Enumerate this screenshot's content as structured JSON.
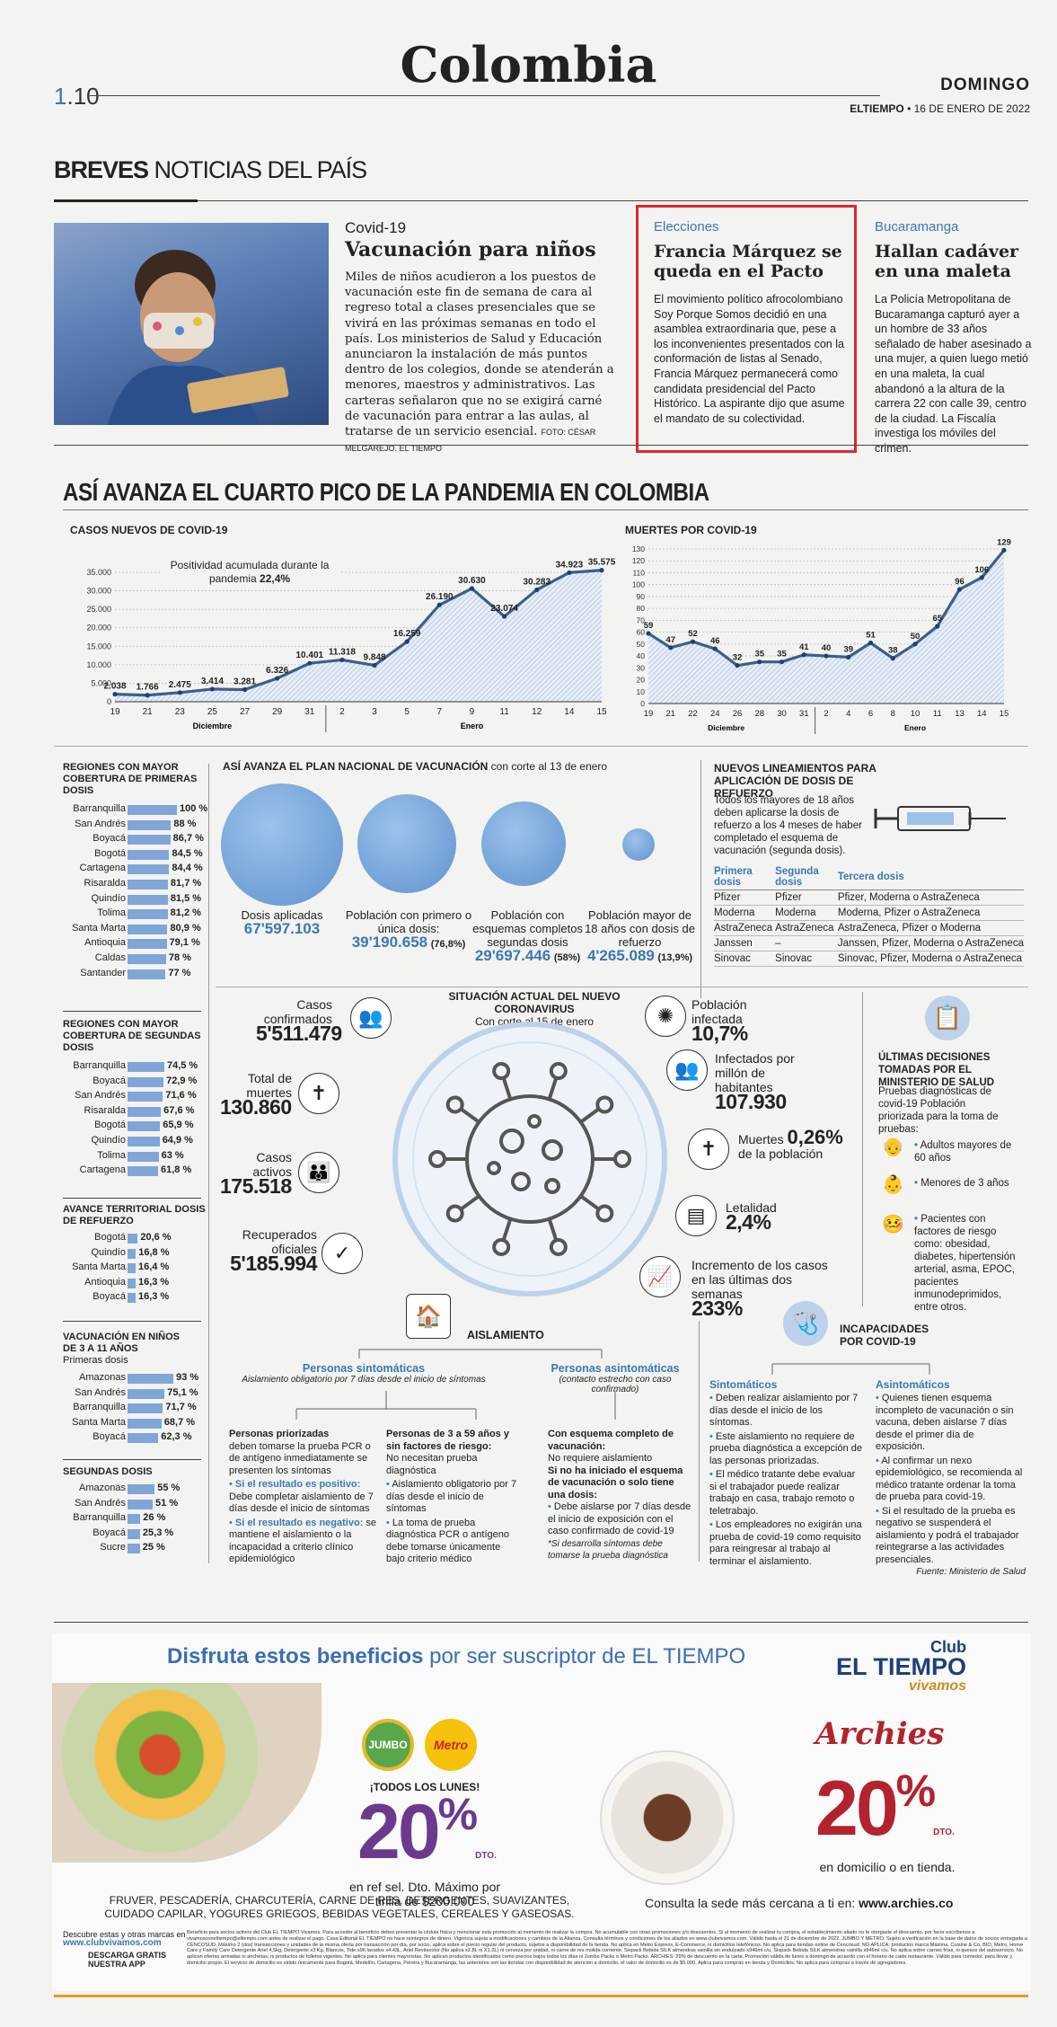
{
  "header": {
    "page_num_a": "1",
    "page_num_b": ".10",
    "section": "Colombia",
    "day": "DOMINGO",
    "paper": "ELTIEMPO",
    "date": " • 16 DE ENERO DE 2022"
  },
  "breves": {
    "label_bold": "BREVES",
    "label_rest": " NOTICIAS DEL PAÍS",
    "items": [
      {
        "kicker": "Covid-19",
        "headline": "Vacunación para niños",
        "text": "Miles de niños acudieron a los puestos de vacunación este fin de semana de cara al regreso total a clases presenciales que se vivirá en las próximas semanas en todo el país. Los ministerios de Salud y Educación anunciaron la instalación de más puntos dentro de los colegios, donde se atenderán a menores, maestros y administrativos. Las carteras señalaron que no se exigirá carné de vacunación para entrar a las aulas, al tratarse de un servicio esencial.",
        "credit": "FOTO: CÉSAR MELGAREJO. EL TIEMPO"
      },
      {
        "kicker": "Elecciones",
        "headline": "Francia Márquez se queda en el Pacto",
        "text": "El movimiento político afrocolombiano Soy Porque Somos decidió en una asamblea extraordinaria que, pese a los inconvenientes presentados con la conformación de listas al Senado, Francia Márquez permanecerá como candidata presidencial del Pacto Histórico. La aspirante dijo que asume el mandato de su colectividad."
      },
      {
        "kicker": "Bucaramanga",
        "headline": "Hallan cadáver en una maleta",
        "text": "La Policía Metropolitana de Bucaramanga capturó ayer a un hombre de 33 años señalado de haber asesinado a una mujer, a quien luego metió en una maleta, la cual abandonó a la altura de la carrera 22 con calle 39, centro de la ciudad. La Fiscalía investiga los móviles del crimen."
      }
    ]
  },
  "pandemic_title": "ASÍ AVANZA EL CUARTO PICO DE LA PANDEMIA EN COLOMBIA",
  "chart_data": [
    {
      "type": "area",
      "title": "CASOS NUEVOS DE COVID-19",
      "annotation": "Positividad acumulada durante la pandemia",
      "annotation_value": "22,4%",
      "x": [
        "19",
        "21",
        "23",
        "25",
        "27",
        "29",
        "31",
        "2",
        "3",
        "5",
        "7",
        "9",
        "11",
        "12",
        "14",
        "15"
      ],
      "x_groups": [
        "Diciembre",
        "Enero"
      ],
      "values": [
        2038,
        1766,
        2475,
        3414,
        3281,
        6326,
        10401,
        11318,
        9848,
        16259,
        26190,
        30630,
        23074,
        30283,
        34923,
        35575
      ],
      "labels": [
        "2.038",
        "1.766",
        "2.475",
        "3.414",
        "3.281",
        "6.326",
        "10.401",
        "11.318",
        "9.848",
        "16.259",
        "26.190",
        "30.630",
        "23.074",
        "30.283",
        "34.923",
        "35.575"
      ],
      "yticks": [
        "0",
        "5.000",
        "10.000",
        "15.000",
        "20.000",
        "25.000",
        "30.000",
        "35.000"
      ],
      "ylim": [
        0,
        35000
      ]
    },
    {
      "type": "area",
      "title": "MUERTES POR COVID-19",
      "x": [
        "19",
        "21",
        "22",
        "24",
        "26",
        "28",
        "30",
        "31",
        "2",
        "4",
        "6",
        "8",
        "10",
        "11",
        "13",
        "14",
        "15"
      ],
      "x_groups": [
        "Diciembre",
        "Enero"
      ],
      "values": [
        59,
        47,
        52,
        46,
        32,
        35,
        35,
        41,
        40,
        39,
        51,
        38,
        50,
        65,
        96,
        106,
        129
      ],
      "yticks": [
        "0",
        "10",
        "20",
        "30",
        "40",
        "50",
        "60",
        "70",
        "80",
        "90",
        "100",
        "110",
        "120",
        "130"
      ],
      "ylim": [
        0,
        130
      ]
    }
  ],
  "regions": {
    "first": {
      "title": "REGIONES CON MAYOR COBERTURA DE PRIMERAS DOSIS",
      "rows": [
        [
          "Barranquilla",
          100,
          "100 %"
        ],
        [
          "San Andrés",
          88,
          "88 %"
        ],
        [
          "Boyacá",
          86.7,
          "86,7 %"
        ],
        [
          "Bogotá",
          84.5,
          "84,5 %"
        ],
        [
          "Cartagena",
          84.4,
          "84,4 %"
        ],
        [
          "Risaralda",
          81.7,
          "81,7 %"
        ],
        [
          "Quindío",
          81.5,
          "81,5 %"
        ],
        [
          "Tolima",
          81.2,
          "81,2 %"
        ],
        [
          "Santa Marta",
          80.9,
          "80,9 %"
        ],
        [
          "Antioquia",
          79.1,
          "79,1 %"
        ],
        [
          "Caldas",
          78,
          "78 %"
        ],
        [
          "Santander",
          77,
          "77 %"
        ]
      ]
    },
    "second": {
      "title": "REGIONES CON MAYOR COBERTURA DE SEGUNDAS DOSIS",
      "rows": [
        [
          "Barranquilla",
          74.5,
          "74,5 %"
        ],
        [
          "Boyacá",
          72.9,
          "72,9 %"
        ],
        [
          "San Andrés",
          71.6,
          "71,6 %"
        ],
        [
          "Risaralda",
          67.6,
          "67,6 %"
        ],
        [
          "Bogotá",
          65.9,
          "65,9 %"
        ],
        [
          "Quindío",
          64.9,
          "64,9 %"
        ],
        [
          "Tolima",
          63,
          "63 %"
        ],
        [
          "Cartagena",
          61.8,
          "61,8 %"
        ]
      ]
    },
    "booster": {
      "title": "AVANCE TERRITORIAL DOSIS DE REFUERZO",
      "rows": [
        [
          "Bogotá",
          20.6,
          "20,6 %"
        ],
        [
          "Quindío",
          16.8,
          "16,8 %"
        ],
        [
          "Santa Marta",
          16.4,
          "16,4 %"
        ],
        [
          "Antioquia",
          16.3,
          "16,3 %"
        ],
        [
          "Boyacá",
          16.3,
          "16,3 %"
        ]
      ]
    },
    "kids": {
      "title": "VACUNACIÓN EN NIÑOS DE 3 A 11 AÑOS",
      "subtitle": "Primeras dosis",
      "rows": [
        [
          "Amazonas",
          93,
          "93 %"
        ],
        [
          "San Andrés",
          75.1,
          "75,1 %"
        ],
        [
          "Barranquilla",
          71.7,
          "71,7 %"
        ],
        [
          "Santa Marta",
          68.7,
          "68,7 %"
        ],
        [
          "Boyacá",
          62.3,
          "62,3 %"
        ]
      ]
    },
    "kids2": {
      "title": "SEGUNDAS DOSIS",
      "rows": [
        [
          "Amazonas",
          55,
          "55 %"
        ],
        [
          "San Andrés",
          51,
          "51 %"
        ],
        [
          "Barranquilla",
          26,
          "26 %"
        ],
        [
          "Boyacá",
          25.3,
          "25,3 %"
        ],
        [
          "Sucre",
          25,
          "25 %"
        ]
      ]
    }
  },
  "plan": {
    "title": "ASÍ AVANZA EL PLAN NACIONAL DE VACUNACIÓN",
    "cutoff": " con corte al 13 de enero",
    "circles": [
      {
        "label": "Dosis aplicadas",
        "value": "67'597.103",
        "pct": ""
      },
      {
        "label": "Población con primero o única dosis:",
        "value": "39'190.658",
        "pct": "(76,8%)"
      },
      {
        "label": "Población con esquemas completos segundas dosis",
        "value": "29'697.446",
        "pct": "(58%)"
      },
      {
        "label": "Población mayor de 18 años con dosis de refuerzo",
        "value": "4'265.089",
        "pct": "(13,9%)"
      }
    ]
  },
  "booster": {
    "title": "NUEVOS LINEAMIENTOS PARA APLICACIÓN DE DOSIS DE REFUERZO",
    "text": "Todos los mayores de 18 años deben aplicarse la dosis de refuerzo a los 4 meses de haber completado el esquema de vacunación (segunda dosis).",
    "headers": [
      "Primera dosis",
      "Segunda dosis",
      "Tercera dosis"
    ],
    "rows": [
      [
        "Pfizer",
        "Pfizer",
        "Pfizer, Moderna o AstraZeneca"
      ],
      [
        "Moderna",
        "Moderna",
        "Moderna, Pfizer o AstraZeneca"
      ],
      [
        "AstraZeneca",
        "AstraZeneca",
        "AstraZeneca, Pfizer o Moderna"
      ],
      [
        "Janssen",
        "–",
        "Janssen, Pfizer, Moderna o AstraZeneca"
      ],
      [
        "Sinovac",
        "Sinovac",
        "Sinovac, Pfizer, Moderna o AstraZeneca"
      ]
    ]
  },
  "situation": {
    "title": "SITUACIÓN ACTUAL DEL NUEVO CORONAVIRUS",
    "subtitle": "Con corte al 15 de enero",
    "left": [
      {
        "label": "Casos confirmados",
        "value": "5'511.479"
      },
      {
        "label": "Total de muertes",
        "value": "130.860"
      },
      {
        "label": "Casos activos",
        "value": "175.518"
      },
      {
        "label": "Recuperados oficiales",
        "value": "5'185.994"
      }
    ],
    "right": [
      {
        "label": "Población infectada",
        "value": "10,7%"
      },
      {
        "label": "Infectados por millón de habitantes",
        "value": "107.930"
      },
      {
        "label": "Muertes",
        "value": "0,26%",
        "label2": "de la población"
      },
      {
        "label": "Letalidad",
        "value": "2,4%"
      },
      {
        "label": "Incremento de los casos en las últimas dos semanas",
        "value": "233%"
      }
    ]
  },
  "decisions": {
    "title": "ÚLTIMAS DECISIONES TOMADAS POR EL MINISTERIO DE SALUD",
    "intro": "Pruebas diagnósticas de covid-19 Población priorizada para la toma de pruebas:",
    "items": [
      "Adultos mayores de 60 años",
      "Menores de 3 años",
      "Pacientes con factores de riesgo como: obesidad, diabetes, hipertensión arterial, asma, EPOC, pacientes inmunodeprimidos, entre otros."
    ]
  },
  "isolation": {
    "title": "AISLAMIENTO",
    "symptomatic": "Personas sintomáticas",
    "symptomatic_sub": "Aislamiento obligatorio por 7 días desde el inicio de síntomas",
    "asymptomatic": "Personas asintomáticas",
    "asymptomatic_sub": "(contacto estrecho con caso confirmado)",
    "col1_title": "Personas priorizadas",
    "col1_text": "deben tomarse la prueba PCR o de antígeno inmediatamente se presenten los síntomas",
    "col1_b1_bold": "Si el resultado es positivo:",
    "col1_b1": " Debe completar aislamiento de 7 días desde el inicio de síntomas",
    "col1_b2_bold": "Si el resultado es negativo:",
    "col1_b2": " se mantiene el aislamiento o la incapacidad a criterio clínico epidemiológico",
    "col2_title": "Personas de 3 a 59 años y sin factores de riesgo:",
    "col2_text": "No necesitan prueba diagnóstica",
    "col2_b1": "Aislamiento obligatorio por 7 días desde el inicio de síntomas",
    "col2_b2": "La toma de prueba diagnóstica PCR o antígeno debe tomarse únicamente bajo criterio médico",
    "col3_title": "Con esquema completo de vacunación:",
    "col3_text": "No requiere aislamiento",
    "col3_title2": "Si no ha iniciado el esquema de vacunación o solo tiene una dosis:",
    "col3_b1": "Debe aislarse por 7 días desde el inicio de exposición con el caso confirmado de covid-19",
    "col3_note": "*Si desarrolla síntomas debe tomarse la prueba diagnóstica"
  },
  "incap": {
    "title": "INCAPACIDADES POR COVID-19",
    "sympt": "Sintomáticos",
    "asympt": "Asintomáticos",
    "sympt_items": [
      "Deben realizar aislamiento por 7 días desde el inicio de los síntomas.",
      "Este aislamiento no requiere de prueba diagnóstica a excepción de las personas priorizadas.",
      "El médico tratante debe evaluar si el trabajador puede realizar trabajo en casa, trabajo remoto o teletrabajo.",
      "Los empleadores no exigirán una prueba de covid-19 como requisito para reingresar al trabajo al terminar el aislamiento."
    ],
    "asympt_items": [
      "Quienes tienen esquema incompleto de vacunación o sin vacuna, deben aislarse 7 días desde el primer día de exposición.",
      "Al confirmar un nexo epidemiológico, se recomienda al médico tratante ordenar la toma de prueba para covid-19.",
      "Si el resultado de la prueba es negativo se suspenderá el aislamiento y podrá el trabajador reintegrarse a las actividades presenciales."
    ],
    "source": "Fuente: Ministerio de Salud"
  },
  "ad": {
    "headline_bold": "Disfruta estos beneficios",
    "headline_rest": " por ser suscriptor de EL TIEMPO",
    "club_a": "Club",
    "club_b": "EL TIEMPO",
    "club_c": "vivamos",
    "jumbo": "JUMBO",
    "metro": "Metro",
    "mondays": "¡TODOS LOS LUNES!",
    "pct": "20",
    "pct_suffix": "%",
    "dto": "DTO.",
    "jumbo_terms": "en ref sel. Dto. Máximo por tirilla de $200.000",
    "archies": "Archies",
    "archies_terms": "en domicilio o en tienda.",
    "categories": "FRUVER, PESCADERÍA, CHARCUTERÍA, CARNE DE RES, DETERGENTES, SUAVIZANTES, CUIDADO CAPILAR, YOGURES GRIEGOS, BEBIDAS VEGETALES, CEREALES Y GASEOSAS.",
    "consult": "Consulta la sede más cercana a ti en: ",
    "consult_url": "www.archies.co",
    "download_a": "Descubre estas y otras marcas en",
    "download_url": "www.clubvivamos.com",
    "download_b": "DESCARGA GRATIS NUESTRA APP",
    "fine_print": "Beneficio para socios activos del Club EL TIEMPO Vivamos. Para acceder al beneficio debes presentar la cédula física y mencionar esta promoción al momento de realizar la compra. No acumulable con otras promociones y/o descuentos. Si al momento de realizar tu compra, el establecimiento aliado no te otorgaste el descuento, por favor escríbenos a vivamosconeltiempo@eltiempo.com antes de realizar el pago. Casa Editorial EL TIEMPO no hace reintegros de dinero. Vigencia sujeta a modificaciones y cambios de la Alianza. Consulta términos y condiciones de los aliados en www.clubvivamos.com. Válido hasta el 31 de diciembre de 2022. JUMBO Y METRO: Sujeto a verificación en la base de datos de socios entregada a CENCOSUD. Máximo 2 (dos) transacciones y unidades de la misma oferta por transacción por día, por socio, aplica sobre el precio regular del producto, sujetos a disponibilidad de la tienda. No aplica en Metro Express, E-Commerce, ni domicilios telefónicos. No aplica para tiendas online de Cencosud. NO APLICA: productos marca Máxima, Cuisine & Co, BIO, Metro, Home Care y Family Care Detergente Ariel 4,5kg, Detergente x3 Kg, Blancos, Tide x96 lavados x4.43L, Ariel Revitacolor (No aplica x2.8L ni X1.2L) ni cerveza por unidad, ni carne de res molida corriente. Sixpack Bebida SILK almendras vainilla sin endulzado x946ml c/u, Sixpack Bebida SILK almendras vainilla x946ml c/u. No aplica sobre carnes frías, ni quesos del autoservicio. No aplican ofertas armadas ni anchetas, ni productos de folletos vigentes. No aplica para clientes mayoristas. No aplican productos identificados como precios bajos todos los días ni Jumbo Packs o Metro Packs. ARCHIES: 20% de descuento en la carta. Promoción válida de lunes a domingo de acuerdo con el horario de cada restaurante. Válido para comedor, para llevar y domicilio propio. El servicio de domicilio es válido únicamente para Bogotá, Medellín, Cartagena, Pereira y Bucaramanga, las anteriores son las tiendas con disponibilidad de atención a domicilio, el valor de domicilio es de $5.000. Aplica para compras en tienda y Domicilios. No aplica para compras a través de agregadores."
  }
}
